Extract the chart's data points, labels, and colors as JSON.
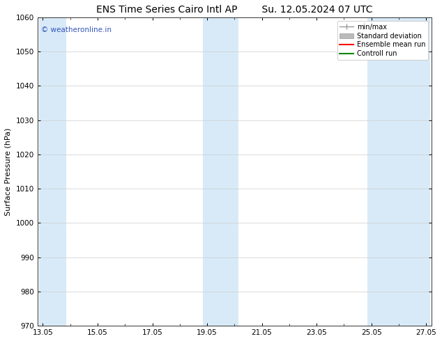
{
  "title_left": "ENS Time Series Cairo Intl AP",
  "title_right": "Su. 12.05.2024 07 UTC",
  "ylabel": "Surface Pressure (hPa)",
  "ylim": [
    970,
    1060
  ],
  "yticks": [
    970,
    980,
    990,
    1000,
    1010,
    1020,
    1030,
    1040,
    1050,
    1060
  ],
  "xtick_labels": [
    "13.05",
    "15.05",
    "17.05",
    "19.05",
    "21.05",
    "23.05",
    "25.05",
    "27.05"
  ],
  "xtick_positions": [
    0,
    2,
    4,
    6,
    8,
    10,
    12,
    14
  ],
  "shaded_bands": [
    {
      "x_start": -0.15,
      "x_end": 0.85
    },
    {
      "x_start": 5.85,
      "x_end": 7.15
    },
    {
      "x_start": 11.85,
      "x_end": 14.15
    }
  ],
  "shade_color": "#d8eaf8",
  "background_color": "#ffffff",
  "plot_bg_color": "#ffffff",
  "watermark_text": "© weatheronline.in",
  "watermark_color": "#3355bb",
  "legend_items": [
    {
      "label": "min/max",
      "color": "#999999"
    },
    {
      "label": "Standard deviation",
      "color": "#bbbbbb"
    },
    {
      "label": "Ensemble mean run",
      "color": "#ff0000"
    },
    {
      "label": "Controll run",
      "color": "#008800"
    }
  ],
  "title_fontsize": 10,
  "tick_fontsize": 7.5,
  "ylabel_fontsize": 8,
  "watermark_fontsize": 7.5,
  "legend_fontsize": 7
}
